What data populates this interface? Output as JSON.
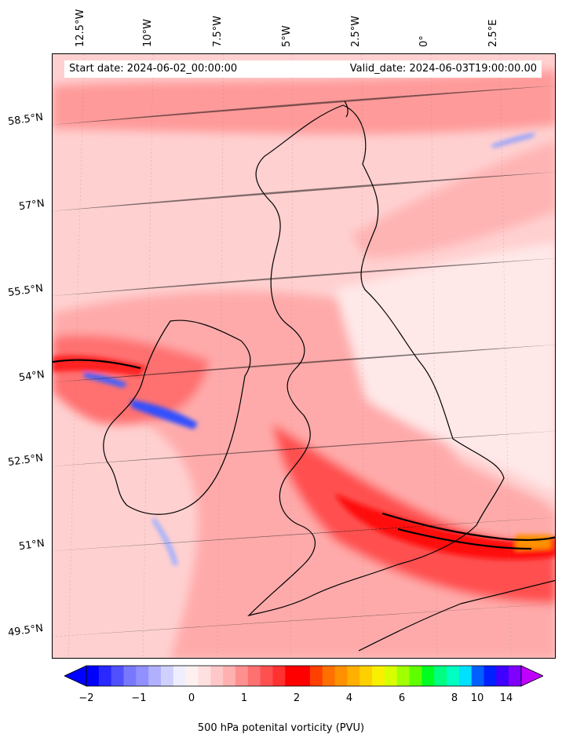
{
  "map": {
    "start_date": "Start date: 2024-06-02_00:00:00",
    "valid_date": "Valid_date: 2024-06-03T19:00:00.00",
    "longitude_labels": [
      "12.5°W",
      "10°W",
      "7.5°W",
      "5°W",
      "2.5°W",
      "0°",
      "2.5°E"
    ],
    "latitude_labels": [
      "58.5°N",
      "57°N",
      "55.5°N",
      "54°N",
      "52.5°N",
      "51°N",
      "49.5°N"
    ],
    "field_colors": {
      "ocean_background": "#ffd0d0",
      "light": "#ffe8e8",
      "medium": "#ffb0b0",
      "strong": "#ff7070",
      "intense": "#ff2020",
      "orange": "#ff8000",
      "blue": "#3050ff",
      "coast": "#000000"
    }
  },
  "colorbar": {
    "label": "500 hPa potenital vorticity (PVU)",
    "tick_labels": [
      "−2",
      "−1",
      "0",
      "1",
      "2",
      "4",
      "6",
      "8",
      "10",
      "14"
    ],
    "colors": [
      "#0000ff",
      "#2828ff",
      "#5050ff",
      "#7878ff",
      "#9090ff",
      "#b0b0ff",
      "#d0d0ff",
      "#eeeeff",
      "#fff0f0",
      "#ffe0e0",
      "#ffc8c8",
      "#ffb0b0",
      "#ff9090",
      "#ff7070",
      "#ff5050",
      "#ff3030",
      "#ff0000",
      "#ff0000",
      "#ff4000",
      "#ff7000",
      "#ff9000",
      "#ffb000",
      "#ffd000",
      "#f8f000",
      "#d8ff00",
      "#a0ff00",
      "#60ff00",
      "#00ff20",
      "#00ff80",
      "#00ffc0",
      "#00e0ff",
      "#0060ff",
      "#0020ff",
      "#4000ff",
      "#8000ff"
    ],
    "extend_low_color": "#0000ff",
    "extend_high_color": "#c000ff"
  }
}
